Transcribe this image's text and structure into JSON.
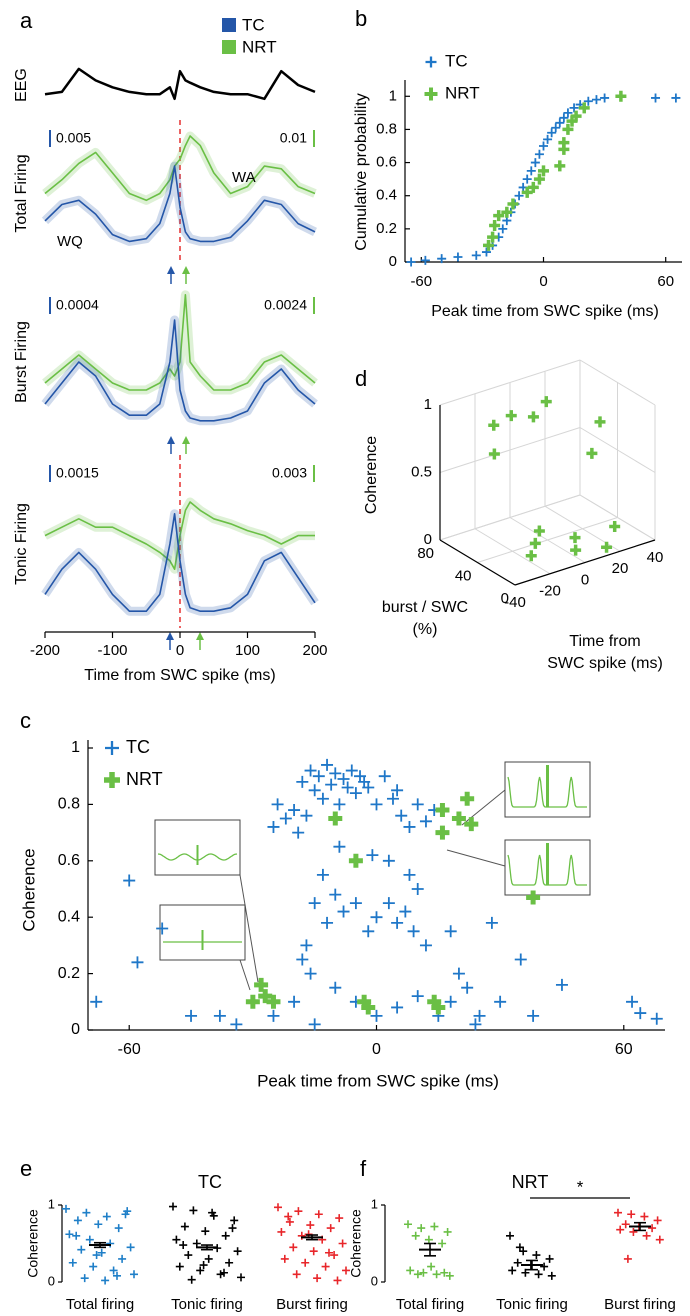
{
  "chart_data": [
    {
      "type": "traces",
      "panel_label": "a",
      "series": [
        {
          "name": "TC",
          "color": "#2456a8"
        },
        {
          "name": "NRT",
          "color": "#6abf45"
        }
      ],
      "x": [
        -200,
        -175,
        -150,
        -125,
        -100,
        -75,
        -50,
        -30,
        -15,
        -8,
        0,
        8,
        15,
        30,
        50,
        75,
        100,
        125,
        150,
        175,
        200
      ],
      "xlim": [
        -200,
        200
      ],
      "xticks": [
        -200,
        -100,
        0,
        100,
        200
      ],
      "xlabel": "Time from SWC spike (ms)",
      "eeg": {
        "label": "EEG",
        "values": [
          0.3,
          0.35,
          0.85,
          0.6,
          0.45,
          0.35,
          0.3,
          0.3,
          0.45,
          0.2,
          0.8,
          0.6,
          0.55,
          0.45,
          0.35,
          0.3,
          0.3,
          0.2,
          0.8,
          0.5,
          0.35
        ]
      },
      "rows": [
        {
          "label": "Total Firing",
          "scale_labels": [
            "0.005",
            "0.01"
          ],
          "annotations": [
            "WA",
            "WQ"
          ],
          "values": [
            [
              0.3,
              0.42,
              0.45,
              0.35,
              0.2,
              0.15,
              0.17,
              0.28,
              0.5,
              0.7,
              0.4,
              0.22,
              0.17,
              0.15,
              0.15,
              0.18,
              0.3,
              0.45,
              0.42,
              0.28,
              0.22
            ],
            [
              0.5,
              0.6,
              0.72,
              0.8,
              0.65,
              0.5,
              0.45,
              0.5,
              0.6,
              0.7,
              0.75,
              0.85,
              0.92,
              0.85,
              0.65,
              0.5,
              0.55,
              0.7,
              0.68,
              0.55,
              0.5
            ]
          ]
        },
        {
          "label": "Burst Firing",
          "scale_labels": [
            "0.0004",
            "0.0024"
          ],
          "annotations": [],
          "values": [
            [
              0.2,
              0.35,
              0.5,
              0.4,
              0.2,
              0.12,
              0.12,
              0.2,
              0.5,
              0.8,
              0.3,
              0.15,
              0.1,
              0.08,
              0.08,
              0.1,
              0.15,
              0.35,
              0.45,
              0.3,
              0.2
            ],
            [
              0.35,
              0.45,
              0.55,
              0.45,
              0.35,
              0.3,
              0.3,
              0.35,
              0.45,
              0.4,
              0.5,
              0.98,
              0.5,
              0.4,
              0.3,
              0.3,
              0.35,
              0.5,
              0.55,
              0.45,
              0.35
            ]
          ]
        },
        {
          "label": "Tonic Firing",
          "scale_labels": [
            "0.0015",
            "0.003"
          ],
          "annotations": [],
          "values": [
            [
              0.2,
              0.35,
              0.45,
              0.35,
              0.2,
              0.1,
              0.1,
              0.2,
              0.5,
              0.68,
              0.4,
              0.2,
              0.12,
              0.1,
              0.1,
              0.12,
              0.2,
              0.4,
              0.45,
              0.3,
              0.15
            ],
            [
              0.55,
              0.6,
              0.65,
              0.6,
              0.6,
              0.55,
              0.5,
              0.45,
              0.4,
              0.35,
              0.55,
              0.7,
              0.75,
              0.7,
              0.65,
              0.62,
              0.58,
              0.55,
              0.5,
              0.55,
              0.55
            ]
          ]
        }
      ]
    },
    {
      "type": "scatter",
      "panel_label": "b",
      "ylabel": "Cumulative probability",
      "xlabel": "Peak time from SWC spike (ms)",
      "xlim": [
        -68,
        68
      ],
      "xticks": [
        -60,
        0,
        60
      ],
      "ylim": [
        0,
        1.05
      ],
      "yticks": [
        0,
        0.2,
        0.4,
        0.6,
        0.8,
        1
      ],
      "series": [
        {
          "name": "TC",
          "color": "#1f77c8",
          "x": [
            -65,
            -58,
            -50,
            -42,
            -33,
            -28,
            -25,
            -22,
            -20,
            -18,
            -16,
            -14,
            -12,
            -10,
            -8,
            -6,
            -4,
            -2,
            0,
            2,
            4,
            6,
            8,
            10,
            12,
            15,
            18,
            22,
            26,
            30,
            55,
            65
          ],
          "values": [
            0,
            0.01,
            0.02,
            0.03,
            0.04,
            0.06,
            0.1,
            0.15,
            0.2,
            0.25,
            0.3,
            0.35,
            0.4,
            0.45,
            0.5,
            0.55,
            0.6,
            0.65,
            0.7,
            0.74,
            0.78,
            0.81,
            0.84,
            0.87,
            0.9,
            0.93,
            0.95,
            0.97,
            0.98,
            0.99,
            0.99,
            0.99
          ]
        },
        {
          "name": "NRT",
          "color": "#6abf45",
          "x": [
            -27,
            -25,
            -24,
            -22,
            -18,
            -15,
            -8,
            -5,
            -2,
            0,
            8,
            10,
            10,
            12,
            14,
            16,
            20,
            38
          ],
          "values": [
            0.1,
            0.15,
            0.22,
            0.28,
            0.3,
            0.35,
            0.42,
            0.45,
            0.5,
            0.55,
            0.58,
            0.68,
            0.72,
            0.8,
            0.85,
            0.88,
            0.93,
            1.0
          ]
        }
      ]
    },
    {
      "type": "scatter",
      "panel_label": "c",
      "ylabel": "Coherence",
      "xlabel": "Peak time from SWC spike (ms)",
      "xlim": [
        -70,
        70
      ],
      "xticks": [
        -60,
        0,
        60
      ],
      "ylim": [
        0,
        1
      ],
      "yticks": [
        0,
        0.2,
        0.4,
        0.6,
        0.8,
        1
      ],
      "series": [
        {
          "name": "TC",
          "color": "#1f77c8",
          "x": [
            -18,
            -16,
            -15,
            -14,
            -13,
            -12,
            -11,
            -10,
            -9,
            -8,
            -7,
            -6,
            -5,
            -4,
            -3,
            -2,
            0,
            2,
            4,
            -20,
            -22,
            -24,
            -25,
            -19,
            -17,
            6,
            8,
            10,
            12,
            14,
            5,
            -13,
            -15,
            -10,
            -8,
            -12,
            -17,
            -18,
            -16,
            -5,
            -2,
            0,
            3,
            5,
            7,
            9,
            10,
            8,
            -1,
            3,
            -9,
            -60,
            -58,
            -52,
            -68,
            -45,
            -38,
            -34,
            -25,
            -20,
            -15,
            -10,
            -5,
            0,
            5,
            10,
            15,
            18,
            20,
            22,
            25,
            28,
            30,
            35,
            38,
            45,
            62,
            64,
            68,
            12,
            18,
            24
          ],
          "values": [
            0.88,
            0.92,
            0.85,
            0.9,
            0.82,
            0.94,
            0.87,
            0.91,
            0.8,
            0.89,
            0.86,
            0.92,
            0.84,
            0.9,
            0.88,
            0.86,
            0.8,
            0.9,
            0.82,
            0.78,
            0.75,
            0.8,
            0.72,
            0.7,
            0.76,
            0.76,
            0.72,
            0.8,
            0.74,
            0.78,
            0.85,
            0.55,
            0.45,
            0.48,
            0.42,
            0.38,
            0.3,
            0.25,
            0.2,
            0.45,
            0.35,
            0.4,
            0.45,
            0.38,
            0.42,
            0.35,
            0.5,
            0.55,
            0.62,
            0.6,
            0.65,
            0.53,
            0.24,
            0.36,
            0.1,
            0.05,
            0.05,
            0.02,
            0.05,
            0.1,
            0.02,
            0.15,
            0.1,
            0.05,
            0.08,
            0.12,
            0.05,
            0.1,
            0.2,
            0.15,
            0.05,
            0.38,
            0.1,
            0.25,
            0.05,
            0.16,
            0.1,
            0.06,
            0.04,
            0.3,
            0.35,
            0.02
          ]
        },
        {
          "name": "NRT",
          "color": "#6abf45",
          "x": [
            -30,
            -28,
            -27,
            -25,
            -10,
            -5,
            -3,
            -2,
            14,
            15,
            16,
            16,
            22,
            20,
            23,
            38
          ],
          "values": [
            0.1,
            0.16,
            0.12,
            0.1,
            0.75,
            0.6,
            0.1,
            0.08,
            0.1,
            0.08,
            0.7,
            0.78,
            0.82,
            0.75,
            0.73,
            0.47
          ]
        }
      ]
    },
    {
      "type": "scatter3d",
      "panel_label": "d",
      "zlabel": "Coherence",
      "ylabel": [
        "burst / SWC",
        "(%)"
      ],
      "xlabel": [
        "Time from",
        "SWC spike (ms)"
      ],
      "xlim": [
        -40,
        40
      ],
      "xticks": [
        -40,
        -20,
        0,
        20,
        40
      ],
      "ylim": [
        0,
        80
      ],
      "yticks": [
        0,
        40,
        80
      ],
      "zlim": [
        0,
        1
      ],
      "zticks": [
        0,
        0.5,
        1
      ],
      "series": [
        {
          "name": "NRT",
          "color": "#6abf45",
          "x": [
            -20,
            -10,
            0,
            10,
            -25,
            20,
            30,
            -20,
            -15,
            -10,
            0,
            15,
            25,
            5
          ],
          "y": [
            60,
            60,
            55,
            60,
            50,
            30,
            40,
            20,
            25,
            30,
            10,
            5,
            15,
            20
          ],
          "z": [
            0.85,
            0.88,
            0.85,
            0.9,
            0.7,
            0.6,
            0.75,
            0.05,
            0.1,
            0.15,
            0.05,
            0.03,
            0.1,
            0.08
          ]
        }
      ]
    },
    {
      "type": "strip",
      "panel_label": "e",
      "title": "TC",
      "ylabel": "Coherence",
      "ylim": [
        0,
        1
      ],
      "yticks": [
        0,
        1
      ],
      "groups": [
        {
          "name": "Total firing",
          "color": "#1f7fc8",
          "mean": 0.48,
          "se": 0.03,
          "values": [
            0.95,
            0.9,
            0.85,
            0.92,
            0.8,
            0.75,
            0.7,
            0.62,
            0.55,
            0.5,
            0.45,
            0.42,
            0.38,
            0.3,
            0.25,
            0.2,
            0.15,
            0.1,
            0.05,
            0.02,
            0.88,
            0.6,
            0.35,
            0.08
          ]
        },
        {
          "name": "Tonic firing",
          "color": "#000000",
          "mean": 0.45,
          "se": 0.03,
          "values": [
            0.98,
            0.93,
            0.86,
            0.8,
            0.72,
            0.66,
            0.6,
            0.55,
            0.5,
            0.44,
            0.4,
            0.35,
            0.3,
            0.25,
            0.2,
            0.15,
            0.1,
            0.06,
            0.03,
            0.9,
            0.7,
            0.48,
            0.22,
            0.12
          ]
        },
        {
          "name": "Burst firing",
          "color": "#e8262a",
          "mean": 0.58,
          "se": 0.03,
          "values": [
            0.97,
            0.92,
            0.88,
            0.83,
            0.78,
            0.74,
            0.7,
            0.65,
            0.6,
            0.55,
            0.5,
            0.45,
            0.4,
            0.35,
            0.3,
            0.25,
            0.2,
            0.15,
            0.1,
            0.05,
            0.02,
            0.85,
            0.62,
            0.38
          ]
        }
      ]
    },
    {
      "type": "strip",
      "panel_label": "f",
      "title": "NRT",
      "ylabel": "Coherence",
      "ylim": [
        0,
        1
      ],
      "yticks": [
        0,
        1
      ],
      "annotation": "*",
      "groups": [
        {
          "name": "Total firing",
          "color": "#6abf45",
          "mean": 0.42,
          "se": 0.08,
          "values": [
            0.75,
            0.7,
            0.72,
            0.65,
            0.6,
            0.55,
            0.5,
            0.15,
            0.12,
            0.1,
            0.08,
            0.1,
            0.2,
            0.12
          ]
        },
        {
          "name": "Tonic firing",
          "color": "#000000",
          "mean": 0.22,
          "se": 0.06,
          "values": [
            0.6,
            0.4,
            0.35,
            0.3,
            0.25,
            0.22,
            0.2,
            0.15,
            0.12,
            0.1,
            0.08,
            0.45
          ]
        },
        {
          "name": "Burst firing",
          "color": "#e8262a",
          "mean": 0.72,
          "se": 0.05,
          "values": [
            0.9,
            0.88,
            0.85,
            0.8,
            0.75,
            0.72,
            0.7,
            0.68,
            0.65,
            0.6,
            0.55,
            0.3
          ]
        }
      ]
    }
  ]
}
